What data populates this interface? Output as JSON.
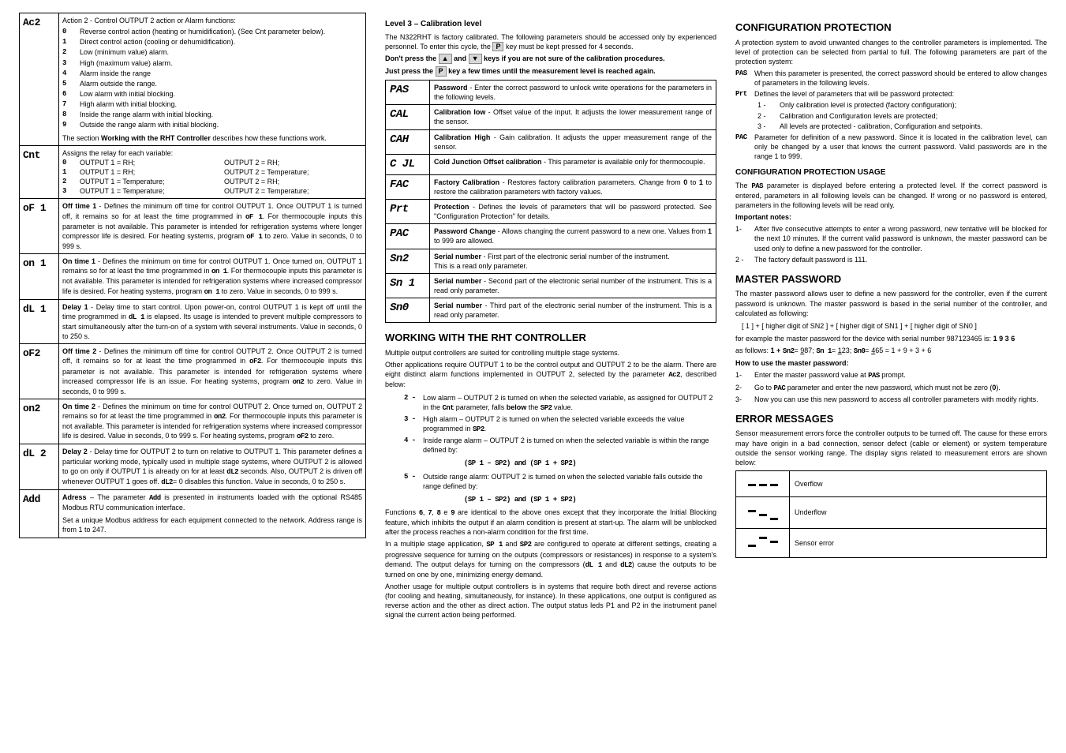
{
  "left": {
    "rows": [
      {
        "code": "Ac2",
        "desc_intro": "Action 2 - Control OUTPUT 2 action or Alarm functions:",
        "actions": [
          {
            "idx": "0",
            "text": "Reverse control action (heating or humidification). (See Cnt parameter below)."
          },
          {
            "idx": "1",
            "text": "Direct control action (cooling or dehumidification)."
          },
          {
            "idx": "2",
            "text": "Low (minimum value) alarm."
          },
          {
            "idx": "3",
            "text": "High (maximum value) alarm."
          },
          {
            "idx": "4",
            "text": "Alarm inside the range"
          },
          {
            "idx": "5",
            "text": "Alarm outside the range."
          },
          {
            "idx": "6",
            "text": "Low alarm with initial blocking."
          },
          {
            "idx": "7",
            "text": "High alarm with initial blocking."
          },
          {
            "idx": "8",
            "text": "Inside the range alarm with initial blocking."
          },
          {
            "idx": "9",
            "text": "Outside the range alarm with initial blocking."
          }
        ],
        "desc_outro": "The section Working with the RHT Controller describes how these functions work."
      },
      {
        "code": "Cnt",
        "cnt_intro": "Assigns the relay for each variable:",
        "cnt_rows": [
          {
            "n": "0",
            "a": "OUTPUT 1 = RH;",
            "b": "OUTPUT 2 = RH;"
          },
          {
            "n": "1",
            "a": "OUTPUT 1 = RH;",
            "b": "OUTPUT 2 = Temperature;"
          },
          {
            "n": "2",
            "a": "OUTPUT 1 = Temperature;",
            "b": "OUTPUT 2 = RH;"
          },
          {
            "n": "3",
            "a": "OUTPUT 1 = Temperature;",
            "b": "OUTPUT 2 = Temperature;"
          }
        ]
      },
      {
        "code": "oF 1",
        "desc": "Off time 1 - Defines the minimum off time for control OUTPUT 1. Once OUTPUT 1 is turned off, it remains so for at least the time programmed in oF 1. For thermocouple inputs this parameter is not available. This parameter is intended for refrigeration systems where longer compressor life is desired. For heating systems, program oF 1 to zero. Value in seconds, 0 to 999 s.",
        "bold_lead": "Off time 1"
      },
      {
        "code": "on 1",
        "desc": "On time 1 - Defines the minimum on time for control OUTPUT 1. Once turned on, OUTPUT 1 remains so for at least the time programmed in on 1. For thermocouple inputs this parameter is not available. This parameter is intended for refrigeration systems where increased compressor life is desired. For heating systems, program on 1 to zero. Value in seconds, 0 to 999 s.",
        "bold_lead": "On time 1"
      },
      {
        "code": "dL 1",
        "desc": "Delay 1 - Delay time to start control. Upon power-on, control OUTPUT 1 is kept off until the time programmed in dL 1 is elapsed.  Its usage is intended to prevent multiple compressors to start simultaneously after the turn-on of a system with several instruments.  Value in seconds, 0 to 250 s.",
        "bold_lead": "Delay 1"
      },
      {
        "code": "oF2",
        "desc": "Off time 2 - Defines the minimum off time for control OUTPUT 2. Once OUTPUT 2 is turned off, it remains so for at least the time programmed in oF2. For thermocouple inputs this parameter is not available. This parameter is intended for refrigeration systems where increased compressor life is an issue. For heating systems, program on2 to zero. Value in seconds, 0 to 999 s.",
        "bold_lead": "Off time 2"
      },
      {
        "code": "on2",
        "desc": "On time 2 - Defines the minimum on time for control OUTPUT 2. Once turned on, OUTPUT 2 remains so for at least the time programmed in on2. For thermocouple inputs this parameter is not available. This parameter is intended for refrigeration systems where increased compressor life is desired. Value in seconds, 0 to 999 s. For heating systems, program oF2 to zero.",
        "bold_lead": "On time 2"
      },
      {
        "code": "dL 2",
        "desc": "Delay 2 - Delay time for OUTPUT 2 to turn on relative to OUTPUT 1. This parameter defines a particular working mode, typically used in multiple stage systems, where OUTPUT 2 is allowed to go on only if OUTPUT 1 is already on for at least dL2 seconds. Also, OUTPUT 2 is driven off whenever OUTPUT 1 goes off. dL2= 0  disables this function. Value in seconds, 0 to 250 s.",
        "bold_lead": "Delay 2"
      },
      {
        "code": "Add",
        "desc": "Adress – The parameter Add is presented in instruments loaded with the optional RS485 Modbus RTU communication interface.",
        "bold_lead": "Adress",
        "desc2": "Set a unique Modbus address for each equipment connected to the network. Address range is from 1 to 247."
      }
    ]
  },
  "mid": {
    "l3_heading": "Level 3 – Calibration level",
    "l3_p1": "The N322RHT is factory calibrated. The following parameters should be accessed only by experienced personnel. To enter this cycle, the",
    "l3_p1_key": "P",
    "l3_p1_after": "key must be kept pressed for 4 seconds.",
    "l3_warn1a": "Don't press the",
    "l3_warn1_k1": "▲",
    "l3_warn1_and": "and",
    "l3_warn1_k2": "▼",
    "l3_warn1b": "keys if you are not sure of the calibration procedures.",
    "l3_warn2a": "Just press the",
    "l3_warn2_key": "P",
    "l3_warn2b": "key a few times until the measurement level is reached again.",
    "pas_rows": [
      {
        "code": "PAS",
        "lead": "Password",
        "desc": " - Enter the correct password to unlock write operations for the parameters in the following levels."
      },
      {
        "code": "CAL",
        "lead": "Calibration low",
        "desc": " - Offset value of the input. It adjusts the lower measurement range of the sensor."
      },
      {
        "code": "CAH",
        "lead": "Calibration High",
        "desc": " - Gain calibration. It adjusts the upper measurement range of the sensor."
      },
      {
        "code": "C JL",
        "lead": "Cold Junction Offset calibration",
        "desc": " - This parameter is available only for thermocouple."
      },
      {
        "code": "FAC",
        "lead": "Factory Calibration",
        "desc": " - Restores factory calibration parameters. Change from 0 to 1 to restore the calibration parameters with factory values."
      },
      {
        "code": "Prt",
        "lead": "Protection",
        "desc": " - Defines the levels of parameters that will be password protected. See \"Configuration Protection\" for details."
      },
      {
        "code": "PAC",
        "lead": "Password Change",
        "desc": " - Allows changing the current password to a new one. Values from 1 to 999 are allowed."
      },
      {
        "code": "Sn2",
        "lead": "Serial number",
        "desc": " - First part of the electronic serial number of the instrument.",
        "desc2": "This is a read only parameter."
      },
      {
        "code": "Sn 1",
        "lead": "Serial number",
        "desc": " - Second part of the electronic serial number of the instrument. This is a read only parameter."
      },
      {
        "code": "Sn0",
        "lead": "Serial number",
        "desc": " - Third part of the electronic serial number of the instrument. This is a read only parameter."
      }
    ],
    "work_heading": "WORKING WITH THE RHT CONTROLLER",
    "work_p1": "Multiple output controllers are suited for controlling multiple stage systems.",
    "work_p2": "Other applications require OUTPUT 1 to be the control output and OUTPUT 2 to be the alarm. There are eight distinct alarm functions implemented in OUTPUT 2, selected by the parameter Ac2, described below:",
    "alarm_items": [
      {
        "n": "2 -",
        "text": "Low alarm – OUTPUT 2 is turned on when the selected variable, as assigned for OUTPUT 2 in the Cnt parameter, falls below the SP2 value."
      },
      {
        "n": "3 -",
        "text": "High alarm – OUTPUT 2 is turned on when the selected variable exceeds the value programmed in SP2."
      },
      {
        "n": "4 -",
        "text": "Inside range alarm – OUTPUT 2 is turned on when the selected variable is within the range defined by:"
      }
    ],
    "formula1": "(SP 1 –  SP2) and (SP 1 +  SP2)",
    "alarm_item5": {
      "n": "5 -",
      "text": "Outside range alarm: OUTPUT 2 is turned on when the selected variable falls outside the range defined by:"
    },
    "formula2": "(SP 1 –  SP2) and (SP 1 +  SP2)",
    "work_p3": "Functions 6, 7, 8 e 9 are identical to the above ones except that they incorporate the Initial Blocking feature, which inhibits the output if an alarm condition is present at start-up. The alarm will be unblocked after the process reaches a non-alarm condition for the first time.",
    "work_p4": "In a multiple stage application, SP 1 and SP2 are configured to operate at different settings, creating a progressive sequence for turning on the outputs (compressors or resistances) in response to a system's demand. The output delays for turning on the compressors (dL 1 and dL2) cause the outputs to be turned on one by one, minimizing energy demand.",
    "work_p5": "Another usage for multiple output controllers is in systems that require both direct and reverse actions (for cooling and heating, simultaneously, for instance). In these applications, one output is configured as reverse action and the other as direct action. The output status leds P1 and P2 in the instrument panel signal the current action being performed."
  },
  "right": {
    "cfgprot_heading": "CONFIGURATION PROTECTION",
    "cfgprot_p1": "A protection system to avoid unwanted changes to the controller parameters is implemented. The level of protection can be selected from partial to full. The following parameters are part of the protection system:",
    "labelled": [
      {
        "code": "PAS",
        "text": "When this parameter is presented, the correct password should be entered to allow changes of parameters in the following levels."
      },
      {
        "code": "Prt",
        "text": "Defines the level of parameters that will be password protected:"
      }
    ],
    "prt_sub": [
      {
        "n": "1 -",
        "text": "Only calibration level is protected (factory configuration);"
      },
      {
        "n": "2 -",
        "text": "Calibration and Configuration levels are protected;"
      },
      {
        "n": "3 -",
        "text": "All levels are protected - calibration, Configuration and setpoints."
      }
    ],
    "pac_item": {
      "code": "PAC",
      "text": "Parameter for definition of a new password. Since it is located in the calibration level, can only be changed by a user that knows the current password. Valid passwords are in the range 1 to 999."
    },
    "cfgprot_usage_heading": "CONFIGURATION PROTECTION USAGE",
    "cfgprot_usage_p1": "The PAS parameter is displayed before entering a protected level. If the correct password is entered, parameters in all following levels can be changed. If wrong or no password is entered, parameters in the following levels will be read only.",
    "imp_notes_heading": "Important notes:",
    "imp_notes": [
      {
        "n": "1-",
        "text": "After five consecutive attempts to enter a wrong password, new tentative will be blocked for the next 10 minutes. If the current valid password is unknown, the master password can be used only to define a new password for the controller."
      },
      {
        "n": "2 -",
        "text": "The factory default password is 111."
      }
    ],
    "masterpw_heading": "MASTER PASSWORD",
    "masterpw_p1": "The master password allows user to define a new password for the controller, even if the current password is unknown. The master password is based in the serial number of the controller, and calculated as following:",
    "masterpw_formula1": "[ 1 ] + [ higher digit of SN2 ] + [ higher digit of SN1 ] + [ higher digit of SN0 ]",
    "masterpw_ex_intro": "for example the master password for the device with serial number 987123465 is: 1 9 3 6",
    "masterpw_ex_line": "as follows: 1 + Sn2= 987;  Sn 1= 123;  Sn0= 465 =  1 + 9 + 3 + 6",
    "howto_heading": "How to use the master password:",
    "howto_items": [
      {
        "n": "1-",
        "text": "Enter the master password value at  PAS  prompt."
      },
      {
        "n": "2-",
        "text": "Go to PAC parameter and enter the new password, which must not be zero (0)."
      },
      {
        "n": "3-",
        "text": "Now you can use this new password to access all controller parameters with modify rights."
      }
    ],
    "err_heading": "ERROR MESSAGES",
    "err_p1": "Sensor measurement errors force the controller outputs to be turned off.  The cause for these errors may have origin in a bad connection, sensor defect (cable or element) or system temperature outside the sensor working range. The display signs related to measurement errors are shown below:",
    "err_rows": [
      {
        "label": "Overflow"
      },
      {
        "label": "Underflow"
      },
      {
        "label": "Sensor error"
      }
    ]
  }
}
